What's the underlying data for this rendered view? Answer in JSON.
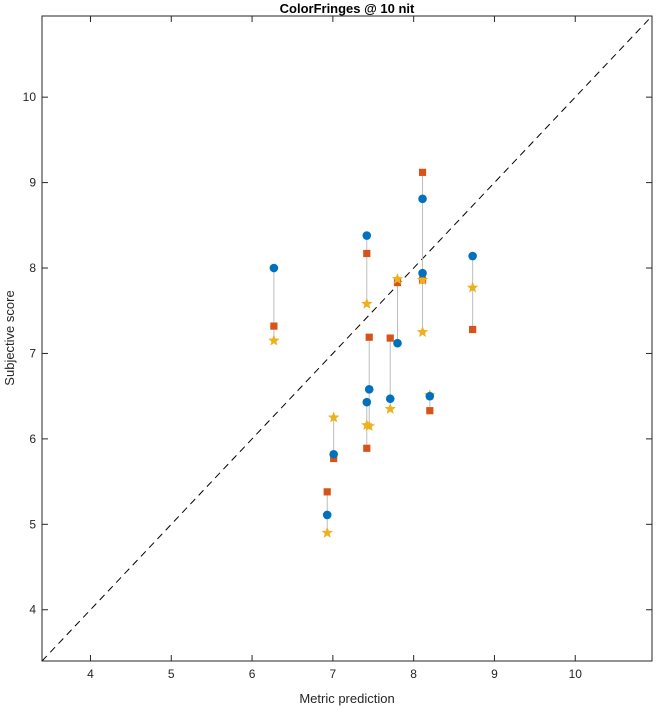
{
  "chart_data": {
    "type": "scatter",
    "title": "ColorFringes @ 10 nit",
    "xlabel": "Metric prediction",
    "ylabel": "Subjective score",
    "xlim": [
      3.4,
      10.95
    ],
    "ylim": [
      3.4,
      10.95
    ],
    "xticks": [
      "4",
      "5",
      "6",
      "7",
      "8",
      "9",
      "10"
    ],
    "yticks": [
      "4",
      "5",
      "6",
      "7",
      "8",
      "9",
      "10"
    ],
    "grid": false,
    "identity_line": true,
    "colors": {
      "blue": "#0072BD",
      "orange": "#D95319",
      "yellow": "#EDB120",
      "connector": "#bdbdbd",
      "diagonal": "#000000"
    },
    "series": [
      {
        "marker": "circle",
        "color": "#0072BD",
        "points": [
          [
            6.27,
            8.0
          ],
          [
            6.93,
            5.11
          ],
          [
            7.01,
            5.82
          ],
          [
            7.42,
            8.38
          ],
          [
            7.42,
            6.43
          ],
          [
            7.45,
            6.58
          ],
          [
            7.71,
            6.47
          ],
          [
            7.8,
            7.12
          ],
          [
            8.11,
            8.81
          ],
          [
            8.11,
            7.94
          ],
          [
            8.2,
            6.5
          ],
          [
            8.73,
            8.14
          ]
        ]
      },
      {
        "marker": "square",
        "color": "#D95319",
        "points": [
          [
            6.27,
            7.32
          ],
          [
            6.93,
            5.38
          ],
          [
            7.01,
            5.77
          ],
          [
            7.42,
            8.17
          ],
          [
            7.42,
            5.89
          ],
          [
            7.45,
            7.19
          ],
          [
            7.71,
            7.18
          ],
          [
            7.8,
            7.83
          ],
          [
            8.11,
            9.12
          ],
          [
            8.11,
            7.86
          ],
          [
            8.2,
            6.33
          ],
          [
            8.73,
            7.28
          ]
        ]
      },
      {
        "marker": "star",
        "color": "#EDB120",
        "points": [
          [
            6.27,
            7.15
          ],
          [
            6.93,
            4.9
          ],
          [
            7.01,
            6.25
          ],
          [
            7.42,
            7.58
          ],
          [
            7.42,
            6.16
          ],
          [
            7.45,
            6.15
          ],
          [
            7.71,
            6.35
          ],
          [
            7.8,
            7.87
          ],
          [
            8.11,
            7.25
          ],
          [
            8.11,
            7.86
          ],
          [
            8.2,
            6.51
          ],
          [
            8.73,
            7.77
          ]
        ]
      }
    ]
  }
}
